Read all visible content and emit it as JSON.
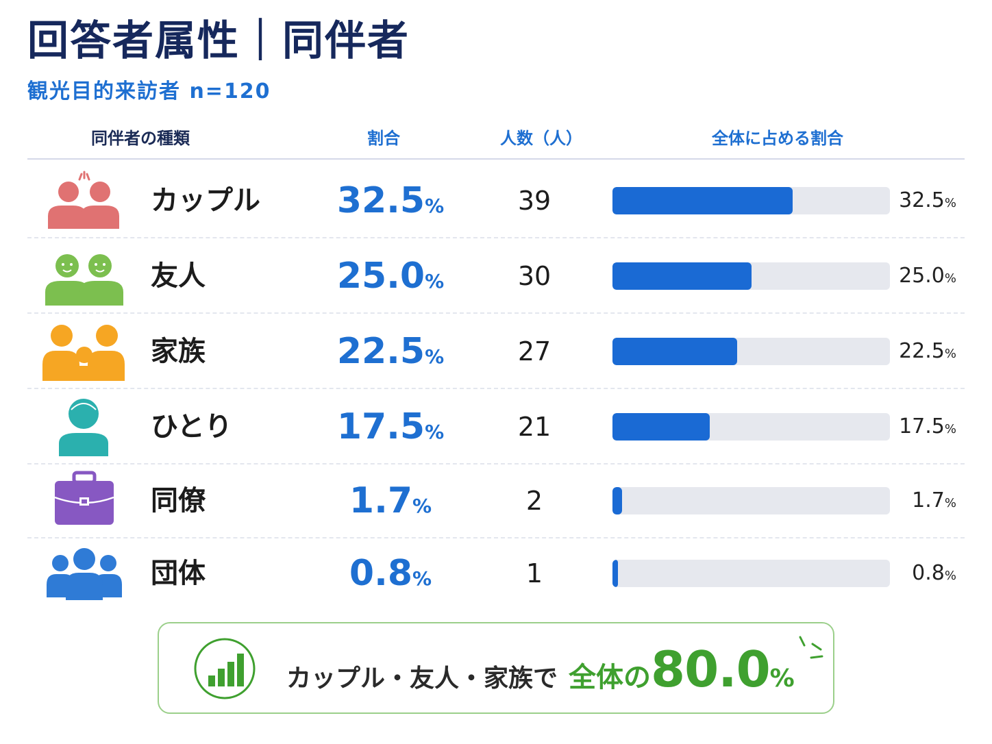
{
  "title": "回答者属性｜同伴者",
  "subtitle": "観光目的来訪者 n=120",
  "headers": {
    "type": "同伴者の種類",
    "pct": "割合",
    "count": "人数（人）",
    "share": "全体に占める割合"
  },
  "unit": "%",
  "rows": [
    {
      "label": "カップル",
      "pct": "32.5",
      "count": "39",
      "icon": "couple-icon",
      "icon_color": "#e07272"
    },
    {
      "label": "友人",
      "pct": "25.0",
      "count": "30",
      "icon": "friends-icon",
      "icon_color": "#7cbf4f"
    },
    {
      "label": "家族",
      "pct": "22.5",
      "count": "27",
      "icon": "family-icon",
      "icon_color": "#f6a623"
    },
    {
      "label": "ひとり",
      "pct": "17.5",
      "count": "21",
      "icon": "person-icon",
      "icon_color": "#2bb0ae"
    },
    {
      "label": "同僚",
      "pct": "1.7",
      "count": "2",
      "icon": "briefcase-icon",
      "icon_color": "#8758c2"
    },
    {
      "label": "団体",
      "pct": "0.8",
      "count": "1",
      "icon": "group-icon",
      "icon_color": "#2f7bd6"
    }
  ],
  "chart_data": {
    "type": "bar",
    "categories": [
      "カップル",
      "友人",
      "家族",
      "ひとり",
      "同僚",
      "団体"
    ],
    "values": [
      32.5,
      25.0,
      22.5,
      17.5,
      1.7,
      0.8
    ],
    "counts": [
      39,
      30,
      27,
      21,
      2,
      1
    ],
    "title": "回答者属性｜同伴者",
    "subtitle": "観光目的来訪者 n=120",
    "xlabel": "全体に占める割合",
    "ylabel": "",
    "xlim": [
      0,
      50
    ],
    "bar_color": "#1a6ad4",
    "track_color": "#e6e8ee"
  },
  "callout": {
    "main": "カップル・友人・家族で",
    "green": "全体の",
    "value": "80.0",
    "unit": "%",
    "icon": "chart-bars-icon",
    "color": "#3fa02f"
  }
}
